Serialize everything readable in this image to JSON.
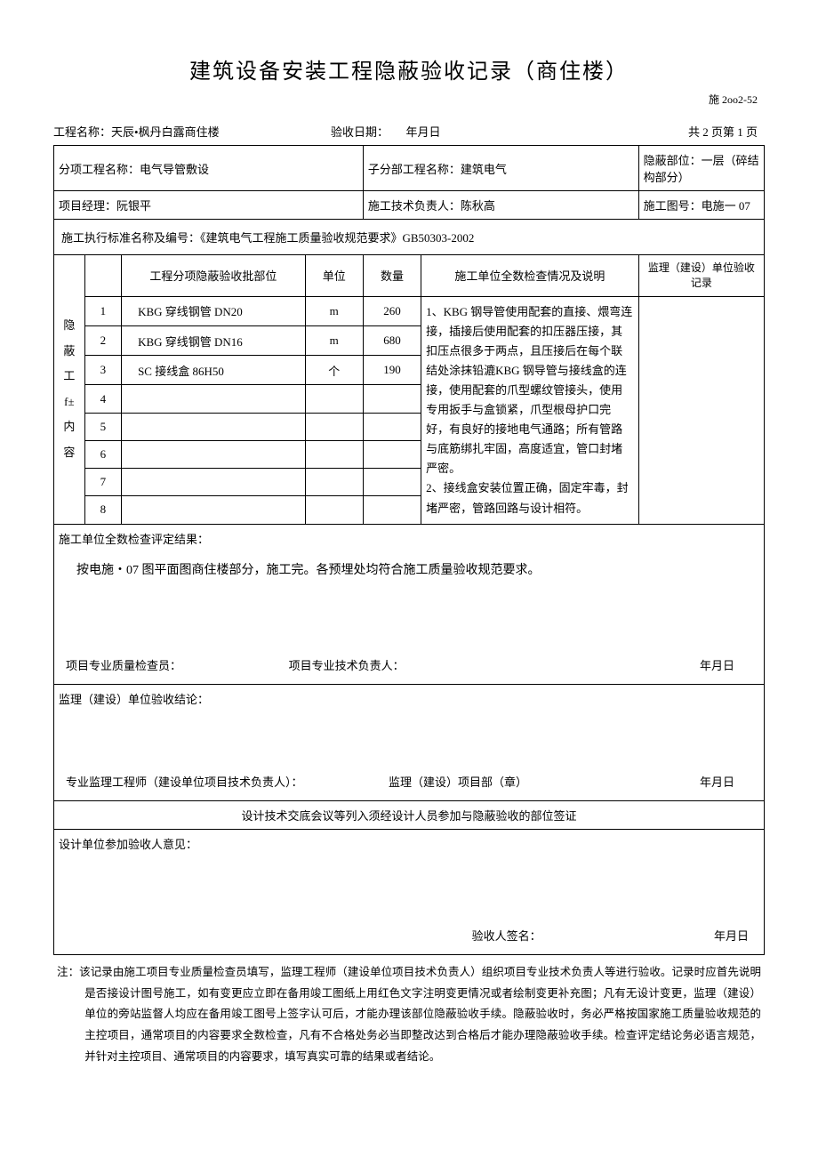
{
  "title": "建筑设备安装工程隐蔽验收记录（商住楼）",
  "form_no": "施 2oo2-52",
  "header": {
    "project_name_label": "工程名称：",
    "project_name": "天辰•枫丹白露商住楼",
    "accept_date_label": "验收日期：",
    "accept_date": "年月日",
    "page_info": "共 2 页第 1 页"
  },
  "row1": {
    "c1_label": "分项工程名称：",
    "c1_val": "电气导管敷设",
    "c2_label": "子分部工程名称：",
    "c2_val": "建筑电气",
    "c3_label": "隐蔽部位：",
    "c3_val": "一层（碎结构部分）"
  },
  "row2": {
    "c1_label": "项目经理：",
    "c1_val": "阮银平",
    "c2_label": "施工技术负责人：",
    "c2_val": "陈秋高",
    "c3_label": "施工图号：",
    "c3_val": "电施一 07"
  },
  "standard_row": "施工执行标准名称及编号：《建筑电气工程施工质量验收规范要求》GB50303-2002",
  "table_headers": {
    "side": "隐\n蔽\n工\nf±\n内\n容",
    "col_part": "工程分项隐蔽验收批部位",
    "col_unit": "单位",
    "col_qty": "数量",
    "col_check": "施工单位全数检查情况及说明",
    "col_super": "监理（建设）单位验收记录"
  },
  "items": [
    {
      "no": "1",
      "name": "KBG 穿线钢管 DN20",
      "unit": "m",
      "qty": "260"
    },
    {
      "no": "2",
      "name": "KBG 穿线钢管 DN16",
      "unit": "m",
      "qty": "680"
    },
    {
      "no": "3",
      "name": "SC 接线盒 86H50",
      "unit": "个",
      "qty": "190"
    },
    {
      "no": "4",
      "name": "",
      "unit": "",
      "qty": ""
    },
    {
      "no": "5",
      "name": "",
      "unit": "",
      "qty": ""
    },
    {
      "no": "6",
      "name": "",
      "unit": "",
      "qty": ""
    },
    {
      "no": "7",
      "name": "",
      "unit": "",
      "qty": ""
    },
    {
      "no": "8",
      "name": "",
      "unit": "",
      "qty": ""
    }
  ],
  "check_desc": "1、KBG 钢导管使用配套的直接、煨弯连接，插接后使用配套的扣压器压接，其扣压点很多于两点，且压接后在每个联结处涂抹铅漉KBG 钢导管与接线盒的连接，使用配套的爪型螺纹管接头，使用专用扳手与盒锁紧，爪型根母护口完好，有良好的接地电气通路；所有管路与底筋绑扎牢固，高度适宜，管口封堵严密。\n2、接线盒安装位置正确，固定牢毒，封堵严密，管路回路与设计相符。",
  "result": {
    "label": "施工单位全数检查评定结果：",
    "text": "按电施・07 图平面图商住楼部分，施工完。各预埋处均符合施工质量验收规范要求。",
    "sig1": "项目专业质量检查员：",
    "sig2": "项目专业技术负责人：",
    "sig_date": "年月日"
  },
  "supervise": {
    "label": "监理（建设）单位验收结论：",
    "sig1": "专业监理工程师（建设单位项目技术负责人）：",
    "sig2": "监理（建设）项目部（章）",
    "sig_date": "年月日"
  },
  "design_section_title": "设计技术交底会议等列入须经设计人员参加与隐蔽验收的部位签证",
  "design": {
    "label": "设计单位参加验收人意见：",
    "sig1": "验收人签名：",
    "sig_date": "年月日"
  },
  "notes": "注：该记录由施工项目专业质量检查员填写，监理工程师（建设单位项目技术负责人）组织项目专业技术负责人等进行验收。记录时应首先说明是否接设计图号施工，如有变更应立即在备用竣工图纸上用红色文字注明变更情况或者绘制变更补充图；凡有无设计变更，监理（建设）单位的旁站监督人均应在备用竣工图号上签字认可后，才能办理该部位隐蔽验收手续。隐蔽验收时，务必严格按国家施工质量验收规范的主控项目，通常项目的内容要求全数检查，凡有不合格处务必当即整改达到合格后才能办理隐蔽验收手续。检查评定结论务必语言规范，并针对主控项目、通常项目的内容要求，填写真实可靠的结果或者结论。"
}
